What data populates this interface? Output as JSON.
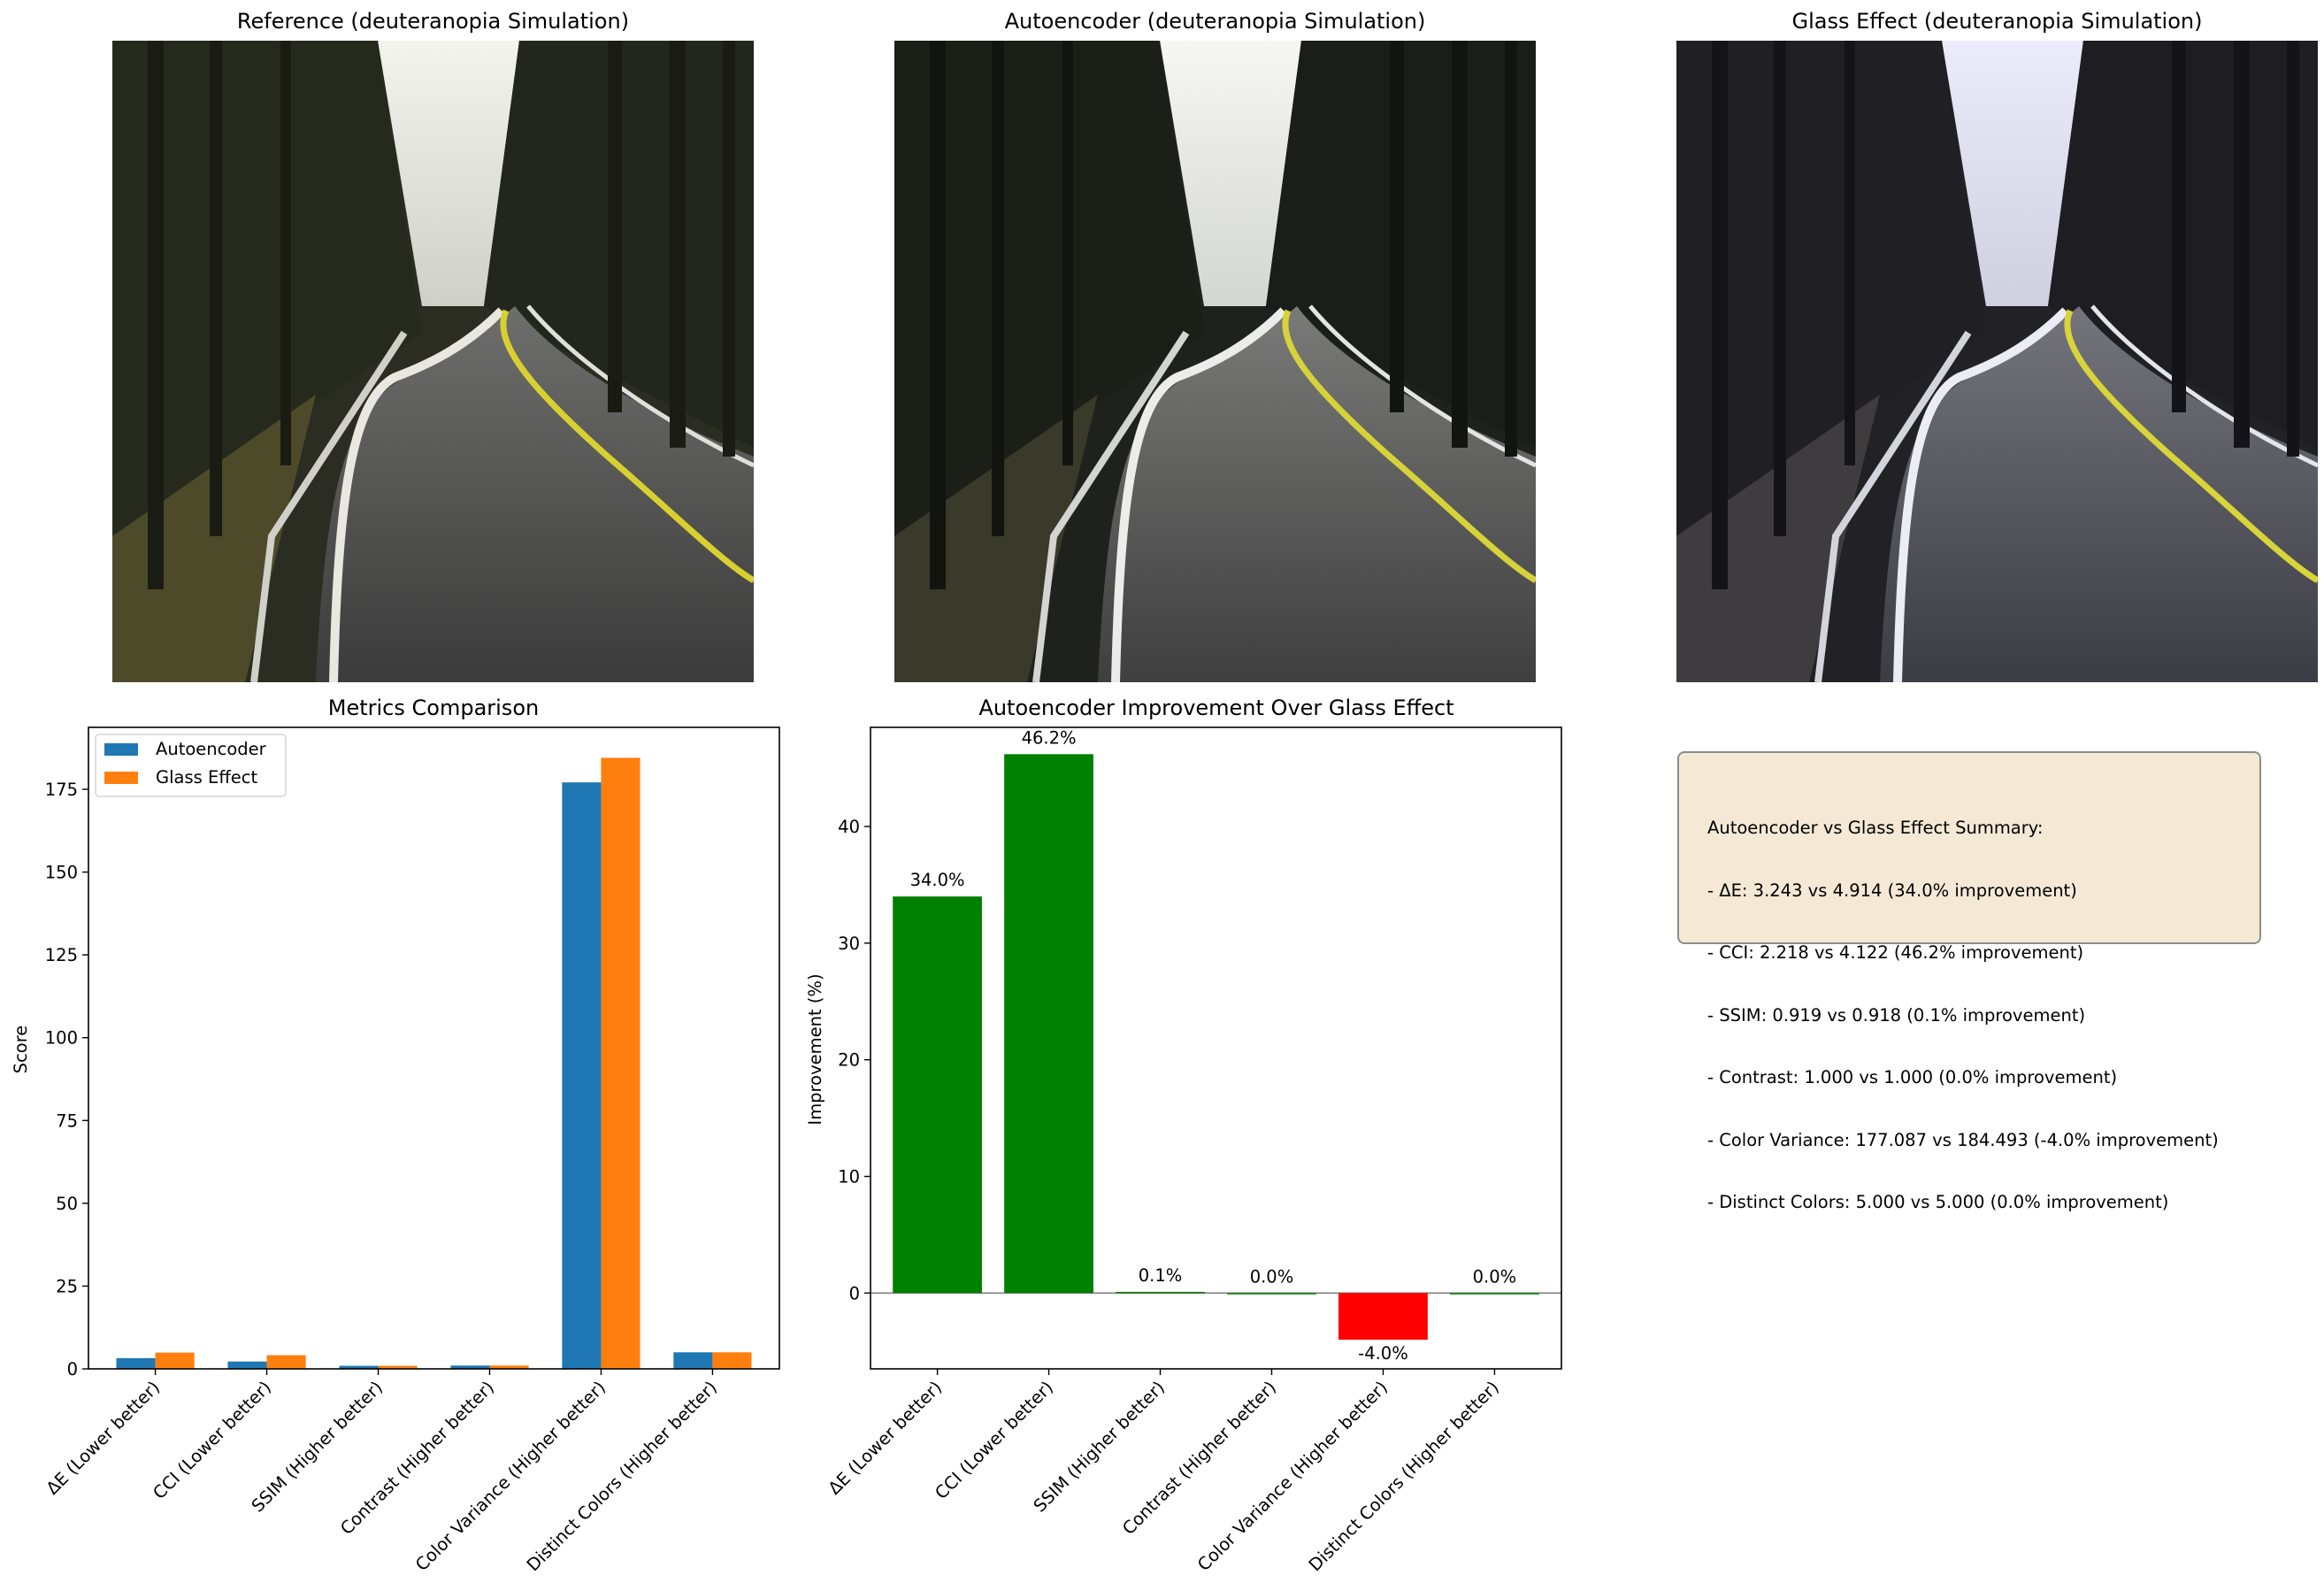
{
  "panels": {
    "reference_title": "Reference (deuteranopia Simulation)",
    "autoencoder_title": "Autoencoder (deuteranopia Simulation)",
    "glass_title": "Glass Effect (deuteranopia Simulation)"
  },
  "chart_data": [
    {
      "type": "bar",
      "title": "Metrics Comparison",
      "xlabel": "",
      "ylabel": "Score",
      "categories": [
        "ΔE (Lower better)",
        "CCI (Lower better)",
        "SSIM (Higher better)",
        "Contrast (Higher better)",
        "Color Variance (Higher better)",
        "Distinct Colors (Higher better)"
      ],
      "series": [
        {
          "name": "Autoencoder",
          "color": "#1f77b4",
          "values": [
            3.243,
            2.218,
            0.919,
            1.0,
            177.087,
            5.0
          ]
        },
        {
          "name": "Glass Effect",
          "color": "#ff7f0e",
          "values": [
            4.914,
            4.122,
            0.918,
            1.0,
            184.493,
            5.0
          ]
        }
      ],
      "ylim": [
        0,
        193.7
      ],
      "yticks": [
        0,
        25,
        50,
        75,
        100,
        125,
        150,
        175
      ],
      "legend": "upper-left",
      "grid": false
    },
    {
      "type": "bar",
      "title": "Autoencoder Improvement Over Glass Effect",
      "xlabel": "",
      "ylabel": "Improvement (%)",
      "categories": [
        "ΔE (Lower better)",
        "CCI (Lower better)",
        "SSIM (Higher better)",
        "Contrast (Higher better)",
        "Color Variance (Higher better)",
        "Distinct Colors (Higher better)"
      ],
      "values": [
        34.0,
        46.2,
        0.1,
        0.0,
        -4.0,
        0.0
      ],
      "labels": [
        "34.0%",
        "46.2%",
        "0.1%",
        "0.0%",
        "-4.0%",
        "0.0%"
      ],
      "positive_color": "#008000",
      "negative_color": "#ff0000",
      "ylim": [
        -6.5,
        48.5
      ],
      "yticks": [
        0,
        10,
        20,
        30,
        40
      ],
      "grid": false
    }
  ],
  "summary": {
    "lines": [
      "Autoencoder vs Glass Effect Summary:",
      "- ΔE: 3.243 vs 4.914 (34.0% improvement)",
      "- CCI: 2.218 vs 4.122 (46.2% improvement)",
      "- SSIM: 0.919 vs 0.918 (0.1% improvement)",
      "- Contrast: 1.000 vs 1.000 (0.0% improvement)",
      "- Color Variance: 177.087 vs 184.493 (-4.0% improvement)",
      "- Distinct Colors: 5.000 vs 5.000 (0.0% improvement)"
    ]
  }
}
